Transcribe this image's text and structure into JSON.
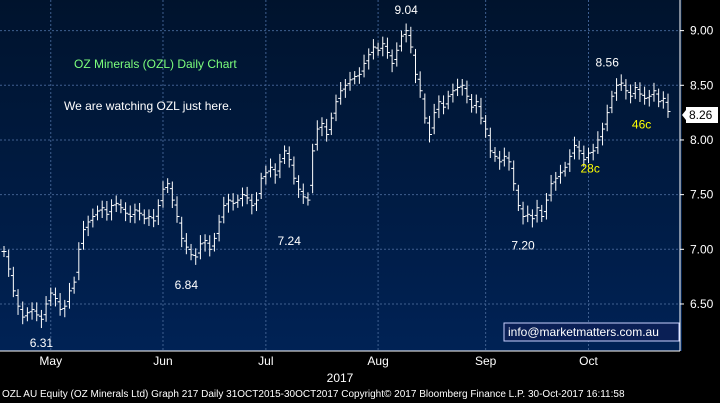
{
  "footer": {
    "text": "OZL AU Equity (OZ Minerals Ltd) Graph 217  Daily 31OCT2015-30OCT2017  Copyright© 2017 Bloomberg Finance L.P.  30-Oct-2017 16:11:58"
  },
  "chart_data": {
    "type": "ohlc",
    "title": "OZ Minerals (OZL) Daily Chart",
    "subtitle": "We are watching OZL just here.",
    "watermark": "info@marketmatters.com.au",
    "year_label": "2017",
    "ylim": [
      6.07,
      9.28
    ],
    "yticks": [
      "9.00",
      "8.50",
      "8.00",
      "7.50",
      "7.00",
      "6.50"
    ],
    "ytick_values": [
      9.0,
      8.5,
      8.0,
      7.5,
      7.0,
      6.5
    ],
    "current_price": "8.26",
    "current_value": 8.26,
    "months": [
      {
        "label": "May",
        "index": 10
      },
      {
        "label": "Jun",
        "index": 34
      },
      {
        "label": "Jul",
        "index": 56
      },
      {
        "label": "Aug",
        "index": 80
      },
      {
        "label": "Sep",
        "index": 103
      },
      {
        "label": "Oct",
        "index": 125
      }
    ],
    "annotations": [
      {
        "text": "6.31",
        "index": 8,
        "value": 6.31,
        "pos": "below",
        "color": "#ffffff"
      },
      {
        "text": "6.84",
        "index": 39,
        "value": 6.84,
        "pos": "below",
        "color": "#ffffff"
      },
      {
        "text": "7.24",
        "index": 61,
        "value": 7.24,
        "pos": "below",
        "color": "#ffffff"
      },
      {
        "text": "9.04",
        "index": 86,
        "value": 9.04,
        "pos": "above",
        "color": "#ffffff"
      },
      {
        "text": "7.20",
        "index": 111,
        "value": 7.2,
        "pos": "below",
        "color": "#ffffff"
      },
      {
        "text": "8.56",
        "index": 129,
        "value": 8.56,
        "pos": "above",
        "color": "#ffffff"
      },
      {
        "text": "28c",
        "index": 122,
        "value": 7.75,
        "pos": "right",
        "color": "#ffff00"
      },
      {
        "text": "46c",
        "index": 133,
        "value": 8.15,
        "pos": "right",
        "color": "#ffff00"
      }
    ],
    "colors": {
      "background_top": "#00132d",
      "background_bottom": "#002255",
      "grid": "#3f5f8f",
      "bars": "#ffffff",
      "title": "#7cff7c",
      "annotation": "#ffffff",
      "highlight": "#ffff00"
    },
    "closes": [
      6.98,
      6.82,
      6.62,
      6.48,
      6.38,
      6.42,
      6.45,
      6.4,
      6.36,
      6.5,
      6.6,
      6.55,
      6.45,
      6.48,
      6.62,
      6.7,
      7.0,
      7.18,
      7.25,
      7.3,
      7.35,
      7.38,
      7.32,
      7.4,
      7.42,
      7.38,
      7.33,
      7.3,
      7.36,
      7.33,
      7.28,
      7.3,
      7.26,
      7.4,
      7.55,
      7.6,
      7.45,
      7.3,
      7.1,
      7.02,
      6.95,
      6.93,
      7.05,
      7.08,
      7.0,
      7.1,
      7.25,
      7.4,
      7.45,
      7.42,
      7.45,
      7.5,
      7.47,
      7.4,
      7.45,
      7.65,
      7.7,
      7.75,
      7.68,
      7.8,
      7.9,
      7.82,
      7.65,
      7.55,
      7.48,
      7.45,
      7.9,
      8.1,
      8.15,
      8.05,
      8.2,
      8.35,
      8.45,
      8.5,
      8.55,
      8.58,
      8.6,
      8.7,
      8.78,
      8.85,
      8.82,
      8.88,
      8.8,
      8.7,
      8.82,
      8.95,
      9.0,
      8.85,
      8.6,
      8.45,
      8.2,
      8.05,
      8.25,
      8.35,
      8.3,
      8.4,
      8.45,
      8.48,
      8.5,
      8.4,
      8.3,
      8.35,
      8.2,
      8.1,
      7.9,
      7.85,
      7.8,
      7.85,
      7.8,
      7.6,
      7.4,
      7.3,
      7.32,
      7.28,
      7.38,
      7.3,
      7.45,
      7.6,
      7.65,
      7.7,
      7.75,
      7.85,
      7.95,
      7.9,
      7.82,
      7.88,
      7.9,
      8.0,
      8.1,
      8.25,
      8.4,
      8.5,
      8.52,
      8.45,
      8.4,
      8.48,
      8.42,
      8.38,
      8.4,
      8.45,
      8.35,
      8.38,
      8.26
    ]
  }
}
